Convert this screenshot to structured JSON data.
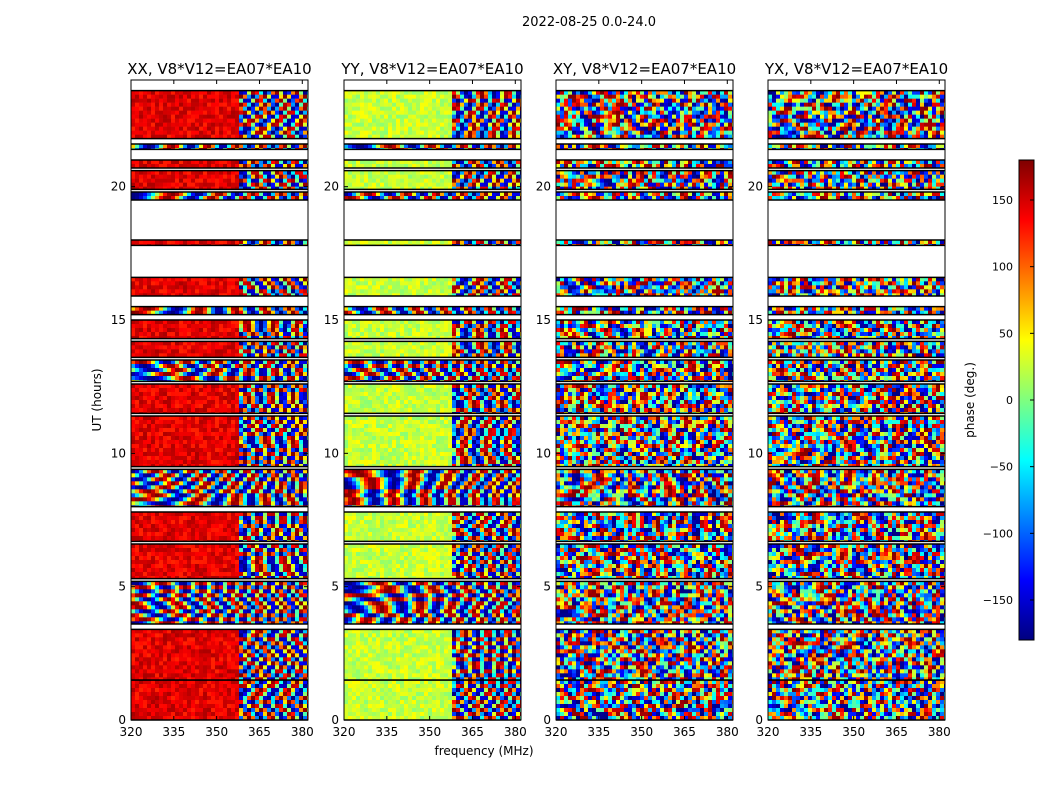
{
  "figure": {
    "suptitle": "2022-08-25 0.0-24.0",
    "xlabel": "frequency (MHz)",
    "ylabel": "UT (hours)"
  },
  "colorbar": {
    "label": "phase (deg.)",
    "range": [
      -180,
      180
    ],
    "ticks": [
      "150",
      "100",
      "50",
      "0",
      "−50",
      "−100",
      "−150"
    ],
    "tick_values": [
      150,
      100,
      50,
      0,
      -50,
      -100,
      -150
    ],
    "colormap": "jet",
    "colors": [
      "#00007f",
      "#0000ff",
      "#007fff",
      "#00ffff",
      "#7fff7f",
      "#ffff00",
      "#ff7f00",
      "#ff0000",
      "#7f0000"
    ]
  },
  "chart_data": [
    {
      "type": "heatmap",
      "title": "XX, V8*V12=EA07*EA10",
      "xlabel": "frequency (MHz)",
      "ylabel": "UT (hours)",
      "xlim": [
        320,
        382
      ],
      "ylim": [
        0,
        24
      ],
      "xticks": [
        "320",
        "335",
        "350",
        "365",
        "380"
      ],
      "xtick_values": [
        320,
        335,
        350,
        365,
        380
      ],
      "yticks": [
        "0",
        "5",
        "10",
        "15",
        "20"
      ],
      "ytick_values": [
        0,
        5,
        10,
        15,
        20
      ],
      "data_time_ranges_hours": [
        [
          0.0,
          1.5
        ],
        [
          1.5,
          3.4
        ],
        [
          3.6,
          5.2
        ],
        [
          5.3,
          6.6
        ],
        [
          6.7,
          7.8
        ],
        [
          8.0,
          9.4
        ],
        [
          9.5,
          11.4
        ],
        [
          11.5,
          12.6
        ],
        [
          12.7,
          13.5
        ],
        [
          13.6,
          14.2
        ],
        [
          14.3,
          15.0
        ],
        [
          15.2,
          15.5
        ],
        [
          15.9,
          16.6
        ],
        [
          17.8,
          18.0
        ],
        [
          19.5,
          19.8
        ],
        [
          19.9,
          20.6
        ],
        [
          20.7,
          21.0
        ],
        [
          21.4,
          21.6
        ],
        [
          21.8,
          23.6
        ]
      ],
      "value_metric": "phase (deg.)",
      "note": "per-pixel phase values not legible; dominant phase near 150 deg at low frequency in several blocks"
    },
    {
      "type": "heatmap",
      "title": "YY, V8*V12=EA07*EA10",
      "xlabel": "frequency (MHz)",
      "ylabel": "UT (hours)",
      "xlim": [
        320,
        382
      ],
      "ylim": [
        0,
        24
      ],
      "xticks": [
        "320",
        "335",
        "350",
        "365",
        "380"
      ],
      "xtick_values": [
        320,
        335,
        350,
        365,
        380
      ],
      "yticks": [
        "0",
        "5",
        "10",
        "15",
        "20"
      ],
      "ytick_values": [
        0,
        5,
        10,
        15,
        20
      ],
      "data_time_ranges_hours": [
        [
          0.0,
          1.5
        ],
        [
          1.5,
          3.4
        ],
        [
          3.6,
          5.2
        ],
        [
          5.3,
          6.6
        ],
        [
          6.7,
          7.8
        ],
        [
          8.0,
          9.4
        ],
        [
          9.5,
          11.4
        ],
        [
          11.5,
          12.6
        ],
        [
          12.7,
          13.5
        ],
        [
          13.6,
          14.2
        ],
        [
          14.3,
          15.0
        ],
        [
          15.2,
          15.5
        ],
        [
          15.9,
          16.6
        ],
        [
          17.8,
          18.0
        ],
        [
          19.5,
          19.8
        ],
        [
          19.9,
          20.6
        ],
        [
          20.7,
          21.0
        ],
        [
          21.4,
          21.6
        ],
        [
          21.8,
          23.6
        ]
      ],
      "value_metric": "phase (deg.)",
      "note": "per-pixel phase values not legible; dominant phase near 20 deg at low frequency in several blocks"
    },
    {
      "type": "heatmap",
      "title": "XY, V8*V12=EA07*EA10",
      "xlabel": "frequency (MHz)",
      "ylabel": "UT (hours)",
      "xlim": [
        320,
        382
      ],
      "ylim": [
        0,
        24
      ],
      "xticks": [
        "320",
        "335",
        "350",
        "365",
        "380"
      ],
      "xtick_values": [
        320,
        335,
        350,
        365,
        380
      ],
      "yticks": [
        "0",
        "5",
        "10",
        "15",
        "20"
      ],
      "ytick_values": [
        0,
        5,
        10,
        15,
        20
      ],
      "data_time_ranges_hours": [
        [
          0.0,
          1.5
        ],
        [
          1.5,
          3.4
        ],
        [
          3.6,
          5.2
        ],
        [
          5.3,
          6.6
        ],
        [
          6.7,
          7.8
        ],
        [
          8.0,
          9.4
        ],
        [
          9.5,
          11.4
        ],
        [
          11.5,
          12.6
        ],
        [
          12.7,
          13.5
        ],
        [
          13.6,
          14.2
        ],
        [
          14.3,
          15.0
        ],
        [
          15.2,
          15.5
        ],
        [
          15.9,
          16.6
        ],
        [
          17.8,
          18.0
        ],
        [
          19.5,
          19.8
        ],
        [
          19.9,
          20.6
        ],
        [
          20.7,
          21.0
        ],
        [
          21.4,
          21.6
        ],
        [
          21.8,
          23.6
        ]
      ],
      "value_metric": "phase (deg.)",
      "note": "per-pixel phase values not legible; noisy phase across full range"
    },
    {
      "type": "heatmap",
      "title": "YX, V8*V12=EA07*EA10",
      "xlabel": "frequency (MHz)",
      "ylabel": "UT (hours)",
      "xlim": [
        320,
        382
      ],
      "ylim": [
        0,
        24
      ],
      "xticks": [
        "320",
        "335",
        "350",
        "365",
        "380"
      ],
      "xtick_values": [
        320,
        335,
        350,
        365,
        380
      ],
      "yticks": [
        "0",
        "5",
        "10",
        "15",
        "20"
      ],
      "ytick_values": [
        0,
        5,
        10,
        15,
        20
      ],
      "data_time_ranges_hours": [
        [
          0.0,
          1.5
        ],
        [
          1.5,
          3.4
        ],
        [
          3.6,
          5.2
        ],
        [
          5.3,
          6.6
        ],
        [
          6.7,
          7.8
        ],
        [
          8.0,
          9.4
        ],
        [
          9.5,
          11.4
        ],
        [
          11.5,
          12.6
        ],
        [
          12.7,
          13.5
        ],
        [
          13.6,
          14.2
        ],
        [
          14.3,
          15.0
        ],
        [
          15.2,
          15.5
        ],
        [
          15.9,
          16.6
        ],
        [
          17.8,
          18.0
        ],
        [
          19.5,
          19.8
        ],
        [
          19.9,
          20.6
        ],
        [
          20.7,
          21.0
        ],
        [
          21.4,
          21.6
        ],
        [
          21.8,
          23.6
        ]
      ],
      "value_metric": "phase (deg.)",
      "note": "per-pixel phase values not legible; noisy phase across full range"
    }
  ]
}
